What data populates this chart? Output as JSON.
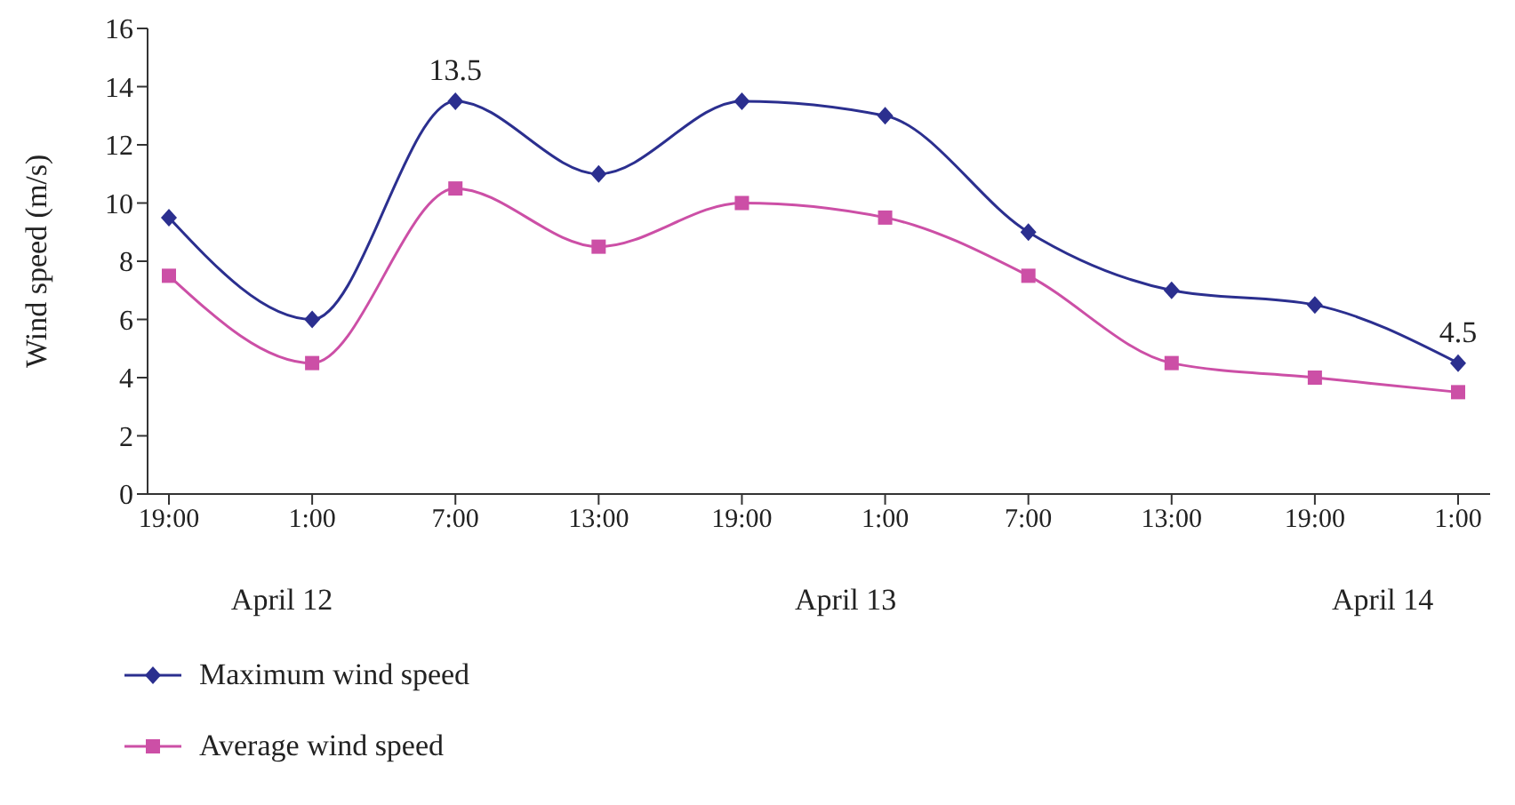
{
  "chart_data": {
    "type": "line",
    "ylabel": "Wind speed (m/s)",
    "categories": [
      "19:00",
      "1:00",
      "7:00",
      "13:00",
      "19:00",
      "1:00",
      "7:00",
      "13:00",
      "19:00",
      "1:00"
    ],
    "series": [
      {
        "name": "Maximum wind speed",
        "color": "#2b2f8f",
        "marker": "diamond",
        "values": [
          9.5,
          6,
          13.5,
          11,
          13.5,
          13,
          9,
          7,
          6.5,
          4.5
        ],
        "value_labels": [
          null,
          null,
          "13.5",
          null,
          null,
          null,
          null,
          null,
          null,
          "4.5"
        ]
      },
      {
        "name": "Average wind speed",
        "color": "#cc4fa6",
        "marker": "square",
        "values": [
          7.5,
          4.5,
          10.5,
          8.5,
          10,
          9.5,
          7.5,
          4.5,
          4,
          3.5
        ]
      }
    ],
    "ylim": [
      0,
      16
    ],
    "yticks": [
      0,
      2,
      4,
      6,
      8,
      10,
      12,
      14,
      16
    ],
    "annotations": [
      "April 12",
      "April 13",
      "April 14"
    ],
    "grid": false,
    "legend": "bottom left",
    "line_style": "solid"
  }
}
